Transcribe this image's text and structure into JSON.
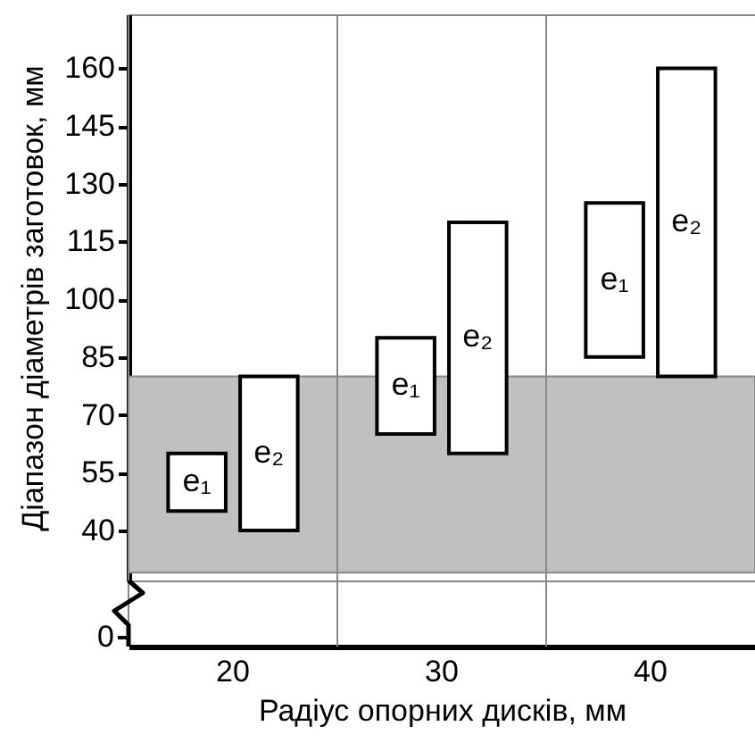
{
  "chart_data": {
    "type": "bar",
    "xlabel": "Радіус опорних дисків, мм",
    "ylabel": "Діапазон діаметрів заготовок, мм",
    "categories": [
      "20",
      "30",
      "40"
    ],
    "series": [
      {
        "name": "e₁",
        "color": "#ffffff",
        "base": [
          45,
          65,
          85
        ],
        "values": [
          15,
          25,
          40
        ]
      },
      {
        "name": "e₂",
        "color": "#ffffff",
        "base": [
          40,
          60,
          80
        ],
        "values": [
          40,
          60,
          80
        ]
      }
    ],
    "ylim": [
      27,
      174
    ],
    "yticks": [
      40,
      55,
      70,
      85,
      100,
      115,
      130,
      145,
      160
    ],
    "grid": "x",
    "bands": [
      {
        "axis": "y",
        "from": 29,
        "to": 80,
        "color": "#c0c0c0"
      }
    ],
    "annotations": [
      "0"
    ]
  }
}
